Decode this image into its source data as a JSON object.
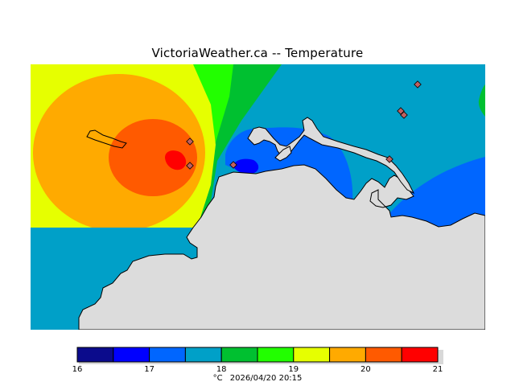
{
  "title": "VictoriaWeather.ca -- Temperature",
  "units": "°C",
  "timestamp": "2026/04/20 20:15",
  "legend": {
    "ticks": [
      "16",
      "17",
      "18",
      "19",
      "20",
      "21"
    ],
    "colors": [
      "#0b0b8c",
      "#0000ff",
      "#0066ff",
      "#00a0c8",
      "#00c030",
      "#22ff00",
      "#e6ff00",
      "#ffaa00",
      "#ff5a00",
      "#ff0000"
    ]
  },
  "map_colors": {
    "land": "#dcdcdc",
    "coast": "#000000",
    "station": "#c06060"
  }
}
